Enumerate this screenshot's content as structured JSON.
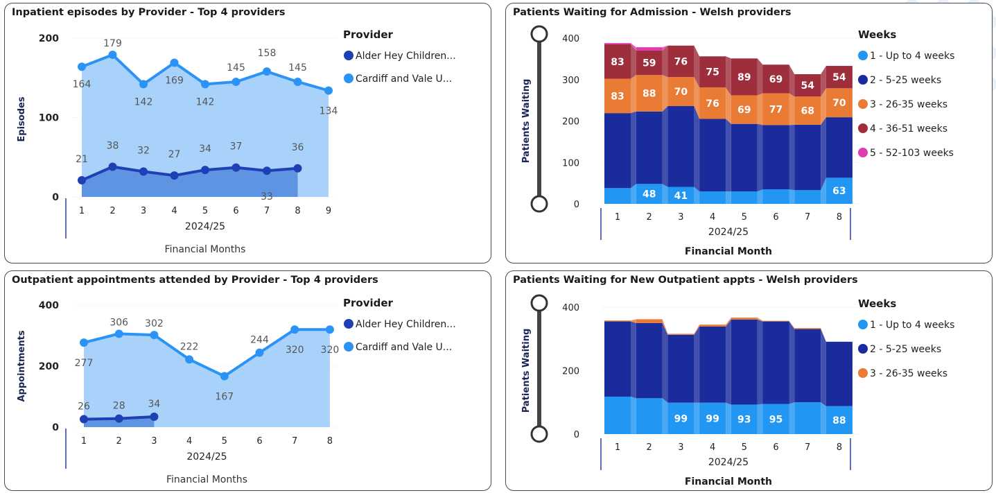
{
  "charts": [
    {
      "title": "Inpatient episodes by Provider - Top 4 providers",
      "chart_data": {
        "type": "line",
        "categories": [
          "1",
          "2",
          "3",
          "4",
          "5",
          "6",
          "7",
          "8",
          "9"
        ],
        "x_label_sub": "2024/25",
        "xlabel": "Financial Months",
        "ylabel": "Episodes",
        "ylim": [
          0,
          200
        ],
        "yticks": [
          "0",
          "100",
          "200"
        ],
        "legend_title": "Provider",
        "legend_position": "right",
        "grid": true,
        "series": [
          {
            "name": "Alder Hey Children...",
            "color": "#1f3fb4",
            "area_color": "#5f94e3",
            "values": [
              21,
              38,
              32,
              27,
              34,
              37,
              33,
              36,
              null
            ]
          },
          {
            "name": "Cardiff and Vale U...",
            "color": "#2b93f5",
            "area_color": "#a9d2fb",
            "values": [
              164,
              179,
              142,
              169,
              142,
              145,
              158,
              145,
              134
            ]
          }
        ]
      }
    },
    {
      "title": "Patients Waiting for Admission - Welsh providers",
      "chart_data": {
        "type": "bar",
        "stacked": true,
        "categories": [
          "1",
          "2",
          "3",
          "4",
          "5",
          "6",
          "7",
          "8"
        ],
        "x_label_sub": "2024/25",
        "xlabel": "Financial Month",
        "ylabel": "Patients Waiting",
        "ylim": [
          0,
          400
        ],
        "yticks": [
          "0",
          "100",
          "200",
          "300",
          "400"
        ],
        "legend_title": "Weeks",
        "legend_position": "right",
        "grid": true,
        "series": [
          {
            "name": "1 - Up to 4 weeks",
            "color": "#2196f3",
            "values": [
              38,
              48,
              41,
              30,
              30,
              35,
              33,
              63
            ],
            "labels": [
              "",
              "48",
              "41",
              "",
              "",
              "",
              "",
              "63"
            ]
          },
          {
            "name": "2 - 5-25 weeks",
            "color": "#1a2b9c",
            "values": [
              181,
              175,
              195,
              175,
              163,
              155,
              158,
              146
            ],
            "labels": [
              "",
              "",
              "",
              "",
              "",
              "",
              "",
              ""
            ]
          },
          {
            "name": "3 - 26-35 weeks",
            "color": "#ea7b35",
            "values": [
              83,
              88,
              70,
              76,
              69,
              77,
              68,
              70
            ],
            "labels": [
              "83",
              "88",
              "70",
              "76",
              "69",
              "77",
              "68",
              "70"
            ]
          },
          {
            "name": "4 - 36-51 weeks",
            "color": "#9f2e3d",
            "values": [
              83,
              59,
              76,
              75,
              89,
              69,
              54,
              54
            ],
            "labels": [
              "83",
              "59",
              "76",
              "75",
              "89",
              "69",
              "54",
              "54"
            ]
          },
          {
            "name": "5 - 52-103 weeks",
            "color": "#e03bb1",
            "values": [
              3,
              8,
              0,
              0,
              0,
              0,
              0,
              0
            ],
            "labels": [
              "",
              "",
              "",
              "",
              "",
              "",
              "",
              ""
            ]
          }
        ]
      }
    },
    {
      "title": "Outpatient appointments attended by Provider - Top 4 providers",
      "chart_data": {
        "type": "line",
        "categories": [
          "1",
          "2",
          "3",
          "4",
          "5",
          "6",
          "7",
          "8"
        ],
        "x_label_sub": "2024/25",
        "xlabel": "Financial Months",
        "ylabel": "Appointments",
        "ylim": [
          0,
          400
        ],
        "yticks": [
          "0",
          "200",
          "400"
        ],
        "legend_title": "Provider",
        "legend_position": "right",
        "grid": true,
        "series": [
          {
            "name": "Alder Hey Children...",
            "color": "#1f3fb4",
            "area_color": "#5f94e3",
            "values": [
              26,
              28,
              34,
              null,
              null,
              null,
              null,
              null
            ]
          },
          {
            "name": "Cardiff and Vale U...",
            "color": "#2b93f5",
            "area_color": "#a9d2fb",
            "values": [
              277,
              306,
              302,
              222,
              167,
              244,
              320,
              320
            ]
          }
        ]
      }
    },
    {
      "title": "Patients Waiting for New Outpatient appts - Welsh providers",
      "chart_data": {
        "type": "bar",
        "stacked": true,
        "categories": [
          "1",
          "2",
          "3",
          "4",
          "5",
          "6",
          "7",
          "8"
        ],
        "x_label_sub": "2024/25",
        "xlabel": "Financial Month",
        "ylabel": "Patients Waiting",
        "ylim": [
          0,
          400
        ],
        "yticks": [
          "0",
          "200",
          "400"
        ],
        "legend_title": "Weeks",
        "legend_position": "right",
        "grid": true,
        "series": [
          {
            "name": "1 - Up to 4 weeks",
            "color": "#2196f3",
            "values": [
              118,
              113,
              99,
              99,
              93,
              95,
              100,
              88
            ],
            "labels": [
              "",
              "",
              "99",
              "99",
              "93",
              "95",
              "",
              "88"
            ]
          },
          {
            "name": "2 - 5-25 weeks",
            "color": "#1a2b9c",
            "values": [
              237,
              237,
              214,
              240,
              268,
              260,
              231,
              203
            ],
            "labels": [
              "",
              "",
              "",
              "",
              "",
              "",
              "",
              ""
            ]
          },
          {
            "name": "3 - 26-35 weeks",
            "color": "#ea7b35",
            "values": [
              3,
              12,
              3,
              6,
              6,
              2,
              3,
              0
            ],
            "labels": [
              "",
              "",
              "",
              "",
              "",
              "",
              "",
              ""
            ]
          }
        ]
      }
    }
  ]
}
